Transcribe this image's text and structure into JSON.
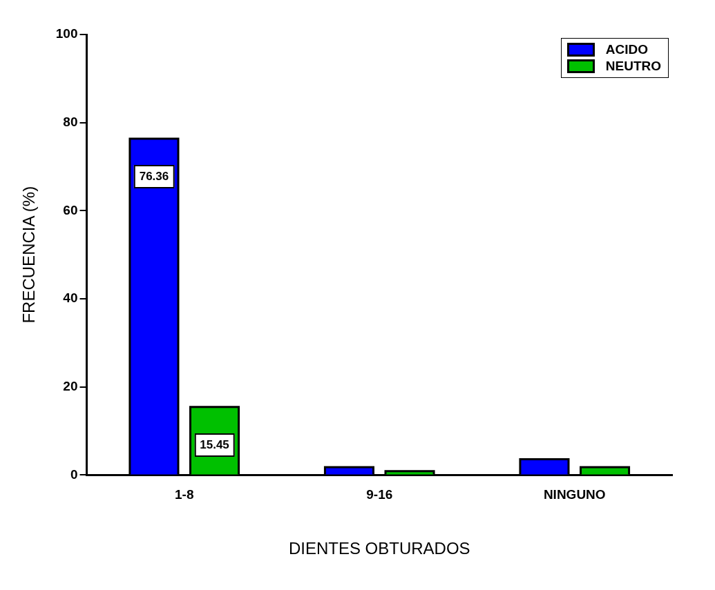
{
  "chart_data": {
    "type": "bar",
    "xlabel": "DIENTES OBTURADOS",
    "ylabel": "FRECUENCIA (%)",
    "categories": [
      "1-8",
      "9-16",
      "NINGUNO"
    ],
    "series": [
      {
        "name": "ACIDO",
        "color": "#0000ff",
        "values": [
          76.36,
          1.8,
          3.6
        ],
        "value_labels": [
          "76.36",
          null,
          null
        ]
      },
      {
        "name": "NEUTRO",
        "color": "#00c000",
        "values": [
          15.45,
          0.9,
          1.8
        ],
        "value_labels": [
          "15.45",
          null,
          null
        ]
      }
    ],
    "ylim": [
      0,
      100
    ],
    "yticks": [
      0,
      20,
      40,
      60,
      80,
      100
    ],
    "grid": false,
    "legend": "top right"
  }
}
